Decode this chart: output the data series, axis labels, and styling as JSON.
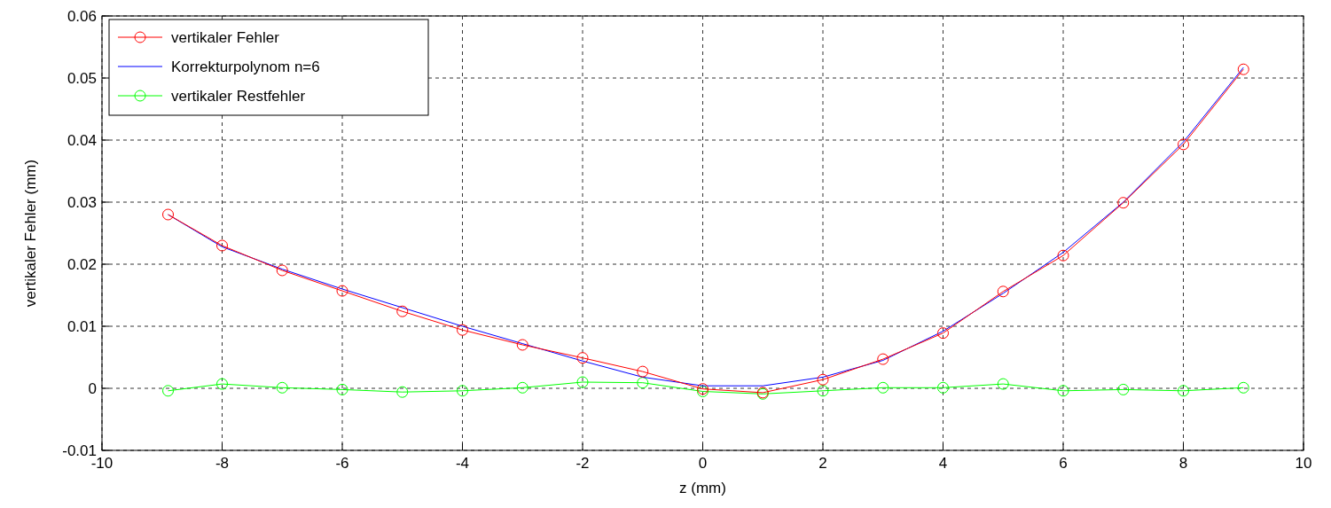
{
  "chart_data": {
    "type": "line",
    "xlabel": "z (mm)",
    "ylabel": "vertikaler Fehler (mm)",
    "xlim": [
      -10,
      10
    ],
    "xticks": [
      -10,
      -8,
      -6,
      -4,
      -2,
      0,
      2,
      4,
      6,
      8,
      10
    ],
    "ylim": [
      -0.01,
      0.06
    ],
    "yticks": [
      -0.01,
      0,
      0.01,
      0.02,
      0.03,
      0.04,
      0.05,
      0.06
    ],
    "grid": true,
    "legend": "top left",
    "x": [
      -8.9,
      -8,
      -7,
      -6,
      -5,
      -4,
      -3,
      -2,
      -1,
      0,
      1,
      2,
      3,
      4,
      5,
      6,
      7,
      8,
      9
    ],
    "series": [
      {
        "name": "vertikaler Fehler",
        "color": "#ff0000",
        "marker": "circle",
        "values": [
          0.028,
          0.023,
          0.019,
          0.0157,
          0.0124,
          0.0094,
          0.007,
          0.0049,
          0.0027,
          -0.0001,
          -0.0007,
          0.0014,
          0.0047,
          0.0089,
          0.0156,
          0.0214,
          0.0299,
          0.0393,
          0.0514
        ]
      },
      {
        "name": "Korrekturpolynom n=6",
        "color": "#0000ff",
        "marker": "none",
        "values": [
          0.028,
          0.0228,
          0.0192,
          0.016,
          0.013,
          0.01,
          0.0072,
          0.0044,
          0.0018,
          0.0004,
          0.0004,
          0.0018,
          0.0045,
          0.0092,
          0.0153,
          0.0219,
          0.03,
          0.0397,
          0.0517
        ]
      },
      {
        "name": "vertikaler Restfehler",
        "color": "#00ff00",
        "marker": "circle",
        "values": [
          -0.0004,
          0.0007,
          0.0001,
          -0.0002,
          -0.0006,
          -0.0004,
          0.0001,
          0.001,
          0.0009,
          -0.0005,
          -0.0009,
          -0.0004,
          0.0001,
          0.0001,
          0.0007,
          -0.0004,
          -0.0002,
          -0.0004,
          0.0001
        ]
      }
    ]
  }
}
